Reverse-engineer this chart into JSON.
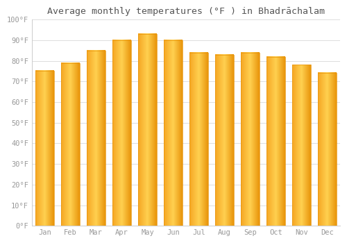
{
  "title": "Average monthly temperatures (°F ) in Bhadrāchalam",
  "months": [
    "Jan",
    "Feb",
    "Mar",
    "Apr",
    "May",
    "Jun",
    "Jul",
    "Aug",
    "Sep",
    "Oct",
    "Nov",
    "Dec"
  ],
  "values": [
    75,
    79,
    85,
    90,
    93,
    90,
    84,
    83,
    84,
    82,
    78,
    74
  ],
  "bar_color_left": "#F5A623",
  "bar_color_center": "#FFD050",
  "bar_color_right": "#E8940A",
  "background_color": "#FFFFFF",
  "grid_color": "#DDDDDD",
  "text_color": "#999999",
  "border_color": "#CCCCCC",
  "ylim": [
    0,
    100
  ],
  "ytick_step": 10,
  "title_fontsize": 9.5,
  "tick_fontsize": 7.5
}
